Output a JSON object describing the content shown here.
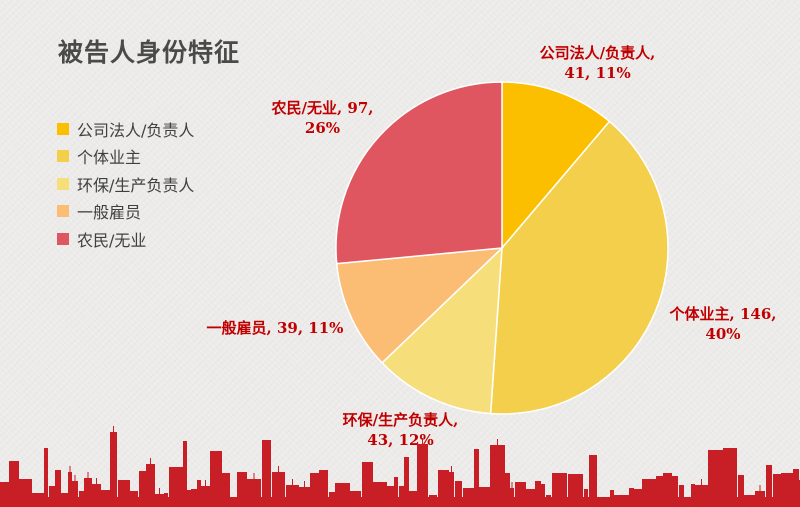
{
  "title": "被告人身份特征",
  "chart_data": {
    "type": "pie",
    "title": "被告人身份特征",
    "legend_position": "left",
    "slices": [
      {
        "label": "公司法人/负责人",
        "value": 41,
        "percent": "11%",
        "color": "#fbbf00"
      },
      {
        "label": "个体业主",
        "value": 146,
        "percent": "40%",
        "color": "#f3cf4c"
      },
      {
        "label": "环保/生产负责人",
        "value": 43,
        "percent": "12%",
        "color": "#f6df7b"
      },
      {
        "label": "一般雇员",
        "value": 39,
        "percent": "11%",
        "color": "#fbbc74"
      },
      {
        "label": "农民/无业",
        "value": 97,
        "percent": "26%",
        "color": "#e05660"
      }
    ]
  },
  "labels": {
    "slice0": {
      "line1": "公司法人/负责人,",
      "line2": "41, 11%"
    },
    "slice1": {
      "line1": "个体业主, 146,",
      "line2": "40%"
    },
    "slice2": {
      "line1": "环保/生产负责人,",
      "line2": "43, 12%"
    },
    "slice3": {
      "line1": "一般雇员, 39, 11%"
    },
    "slice4": {
      "line1": "农民/无业, 97,",
      "line2": "26%"
    }
  },
  "skyline_color": "#c71f25"
}
